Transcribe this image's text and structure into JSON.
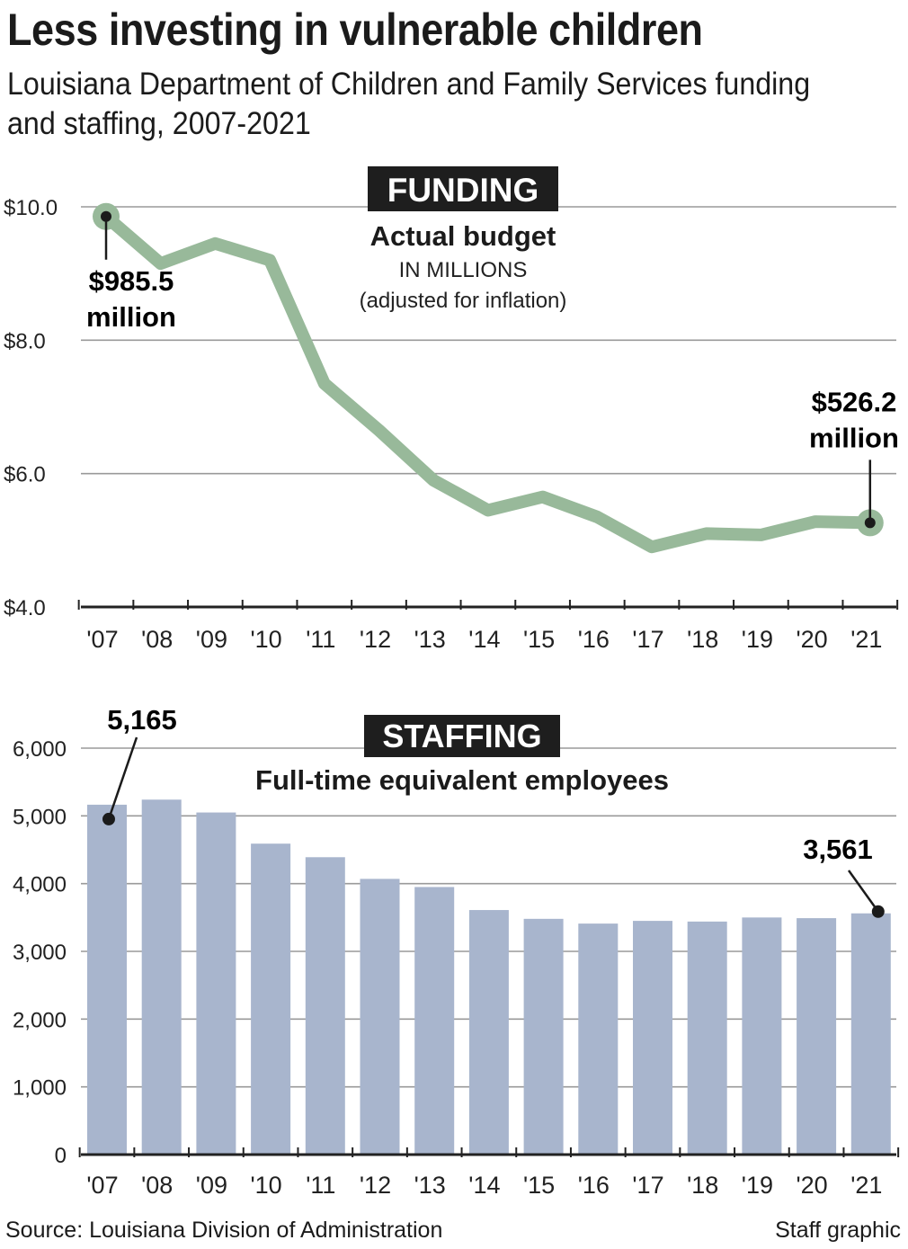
{
  "title": "Less investing in vulnerable children",
  "subtitle": "Louisiana Department of Children and Family Services funding and staffing, 2007-2021",
  "chart_data": [
    {
      "type": "line",
      "title": "FUNDING",
      "subtitle": "Actual budget",
      "unit_label": "IN MILLIONS",
      "note": "(adjusted for inflation)",
      "categories": [
        "'07",
        "'08",
        "'09",
        "'10",
        "'11",
        "'12",
        "'13",
        "'14",
        "'15",
        "'16",
        "'17",
        "'18",
        "'19",
        "'20",
        "'21"
      ],
      "values": [
        9.855,
        9.15,
        9.45,
        9.2,
        7.35,
        6.65,
        5.9,
        5.45,
        5.65,
        5.35,
        4.9,
        5.1,
        5.08,
        5.28,
        5.262
      ],
      "ylim": [
        4.0,
        10.0
      ],
      "ytick_values": [
        4,
        6,
        8,
        10
      ],
      "ytick_labels": [
        "$4.0",
        "$6.0",
        "$8.0",
        "$10.0"
      ],
      "annotations": [
        {
          "index": 0,
          "line1": "$985.5",
          "line2": "million"
        },
        {
          "index": 14,
          "line1": "$526.2",
          "line2": "million"
        }
      ],
      "grid": true,
      "color": "#98b99a"
    },
    {
      "type": "bar",
      "title": "STAFFING",
      "subtitle": "Full-time equivalent employees",
      "categories": [
        "'07",
        "'08",
        "'09",
        "'10",
        "'11",
        "'12",
        "'13",
        "'14",
        "'15",
        "'16",
        "'17",
        "'18",
        "'19",
        "'20",
        "'21"
      ],
      "values": [
        5165,
        5240,
        5050,
        4590,
        4390,
        4070,
        3950,
        3610,
        3480,
        3410,
        3450,
        3440,
        3500,
        3490,
        3561
      ],
      "ylim": [
        0,
        6000
      ],
      "ytick_values": [
        0,
        1000,
        2000,
        3000,
        4000,
        5000,
        6000
      ],
      "ytick_labels": [
        "0",
        "1,000",
        "2,000",
        "3,000",
        "4,000",
        "5,000",
        "6,000"
      ],
      "annotations": [
        {
          "index": 0,
          "label": "5,165"
        },
        {
          "index": 14,
          "label": "3,561"
        }
      ],
      "grid": true,
      "color": "#a8b5cd"
    }
  ],
  "footer": {
    "source": "Source: Louisiana Division of Administration",
    "credit": "Staff graphic"
  }
}
